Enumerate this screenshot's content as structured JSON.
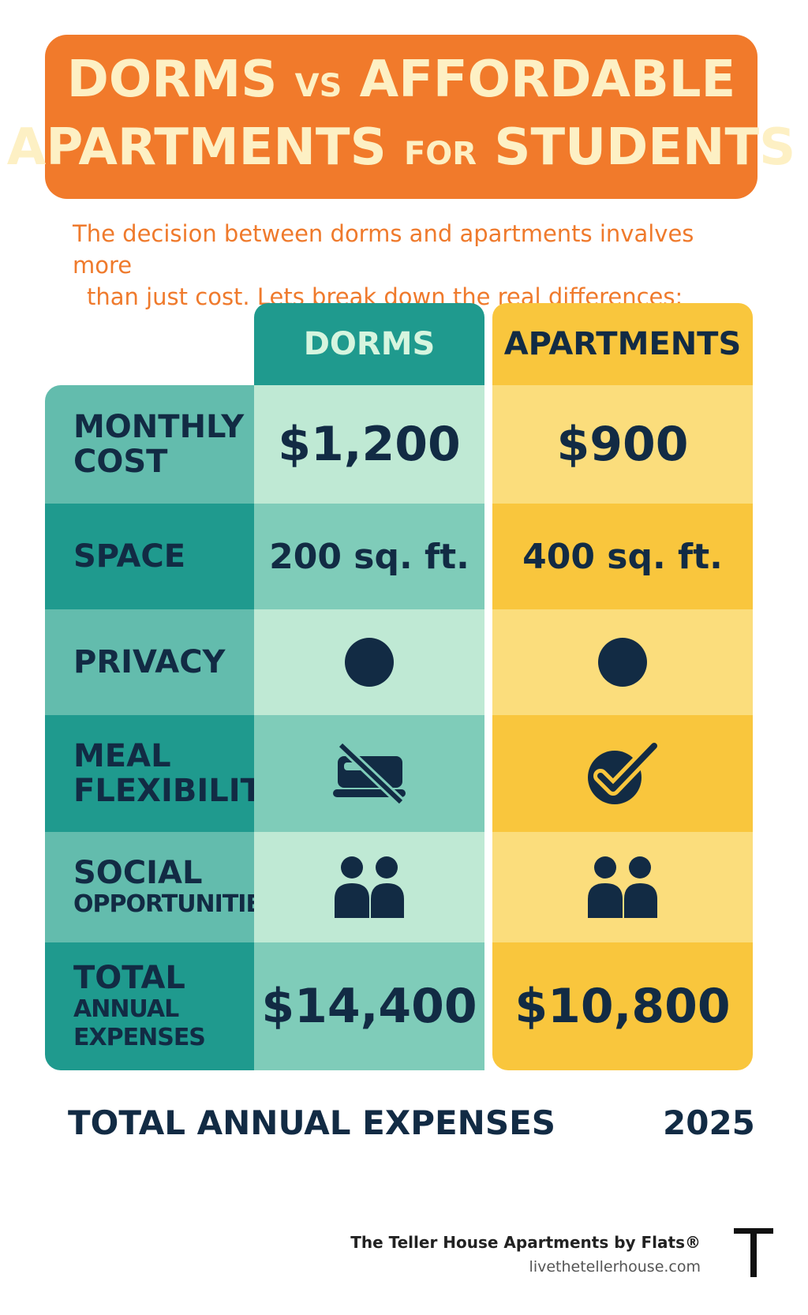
{
  "title": {
    "line1_a": "DORMS",
    "line1_vs": "VS",
    "line1_b": "AFFORDABLE",
    "line2_a": "APARTMENTS",
    "line2_for": "FOR",
    "line2_b": "STUDENTS"
  },
  "intro": {
    "line1": "The decision between dorms and apartments invalves more",
    "line2": "than just cost. Lets break down the real differences:"
  },
  "columns": {
    "dorms": "DORMS",
    "apartments": "APARTMENTS"
  },
  "rows": [
    {
      "label": "MONTHLY",
      "label2": "COST",
      "dorms": "$1,200",
      "apartments": "$900"
    },
    {
      "label": "SPACE",
      "dorms": "200 sq. ft.",
      "apartments": "400 sq. ft."
    },
    {
      "label": "PRIVACY",
      "dorms_icon": "dot-icon",
      "apartments_icon": "dot-icon"
    },
    {
      "label": "MEAL",
      "label2": "FLEXIBILITY",
      "dorms_icon": "no-meal-icon",
      "apartments_icon": "check-circle-icon"
    },
    {
      "label": "SOCIAL",
      "label2": "OPPORTUNITIES",
      "dorms_icon": "people-icon",
      "apartments_icon": "people-icon"
    },
    {
      "label": "TOTAL",
      "label2": "ANNUAL EXPENSES",
      "dorms": "$14,400",
      "apartments": "$10,800"
    }
  ],
  "bottom": {
    "label": "TOTAL ANNUAL EXPENSES",
    "year": "2025"
  },
  "footer": {
    "brand": "The Teller House Apartments by Flats®",
    "url": "livethetellerhouse.com",
    "logo_letter": "T"
  },
  "colors": {
    "orange": "#f17a2b",
    "teal": "#1f9a8e",
    "yellow": "#f9c63d",
    "navy": "#122b44"
  }
}
